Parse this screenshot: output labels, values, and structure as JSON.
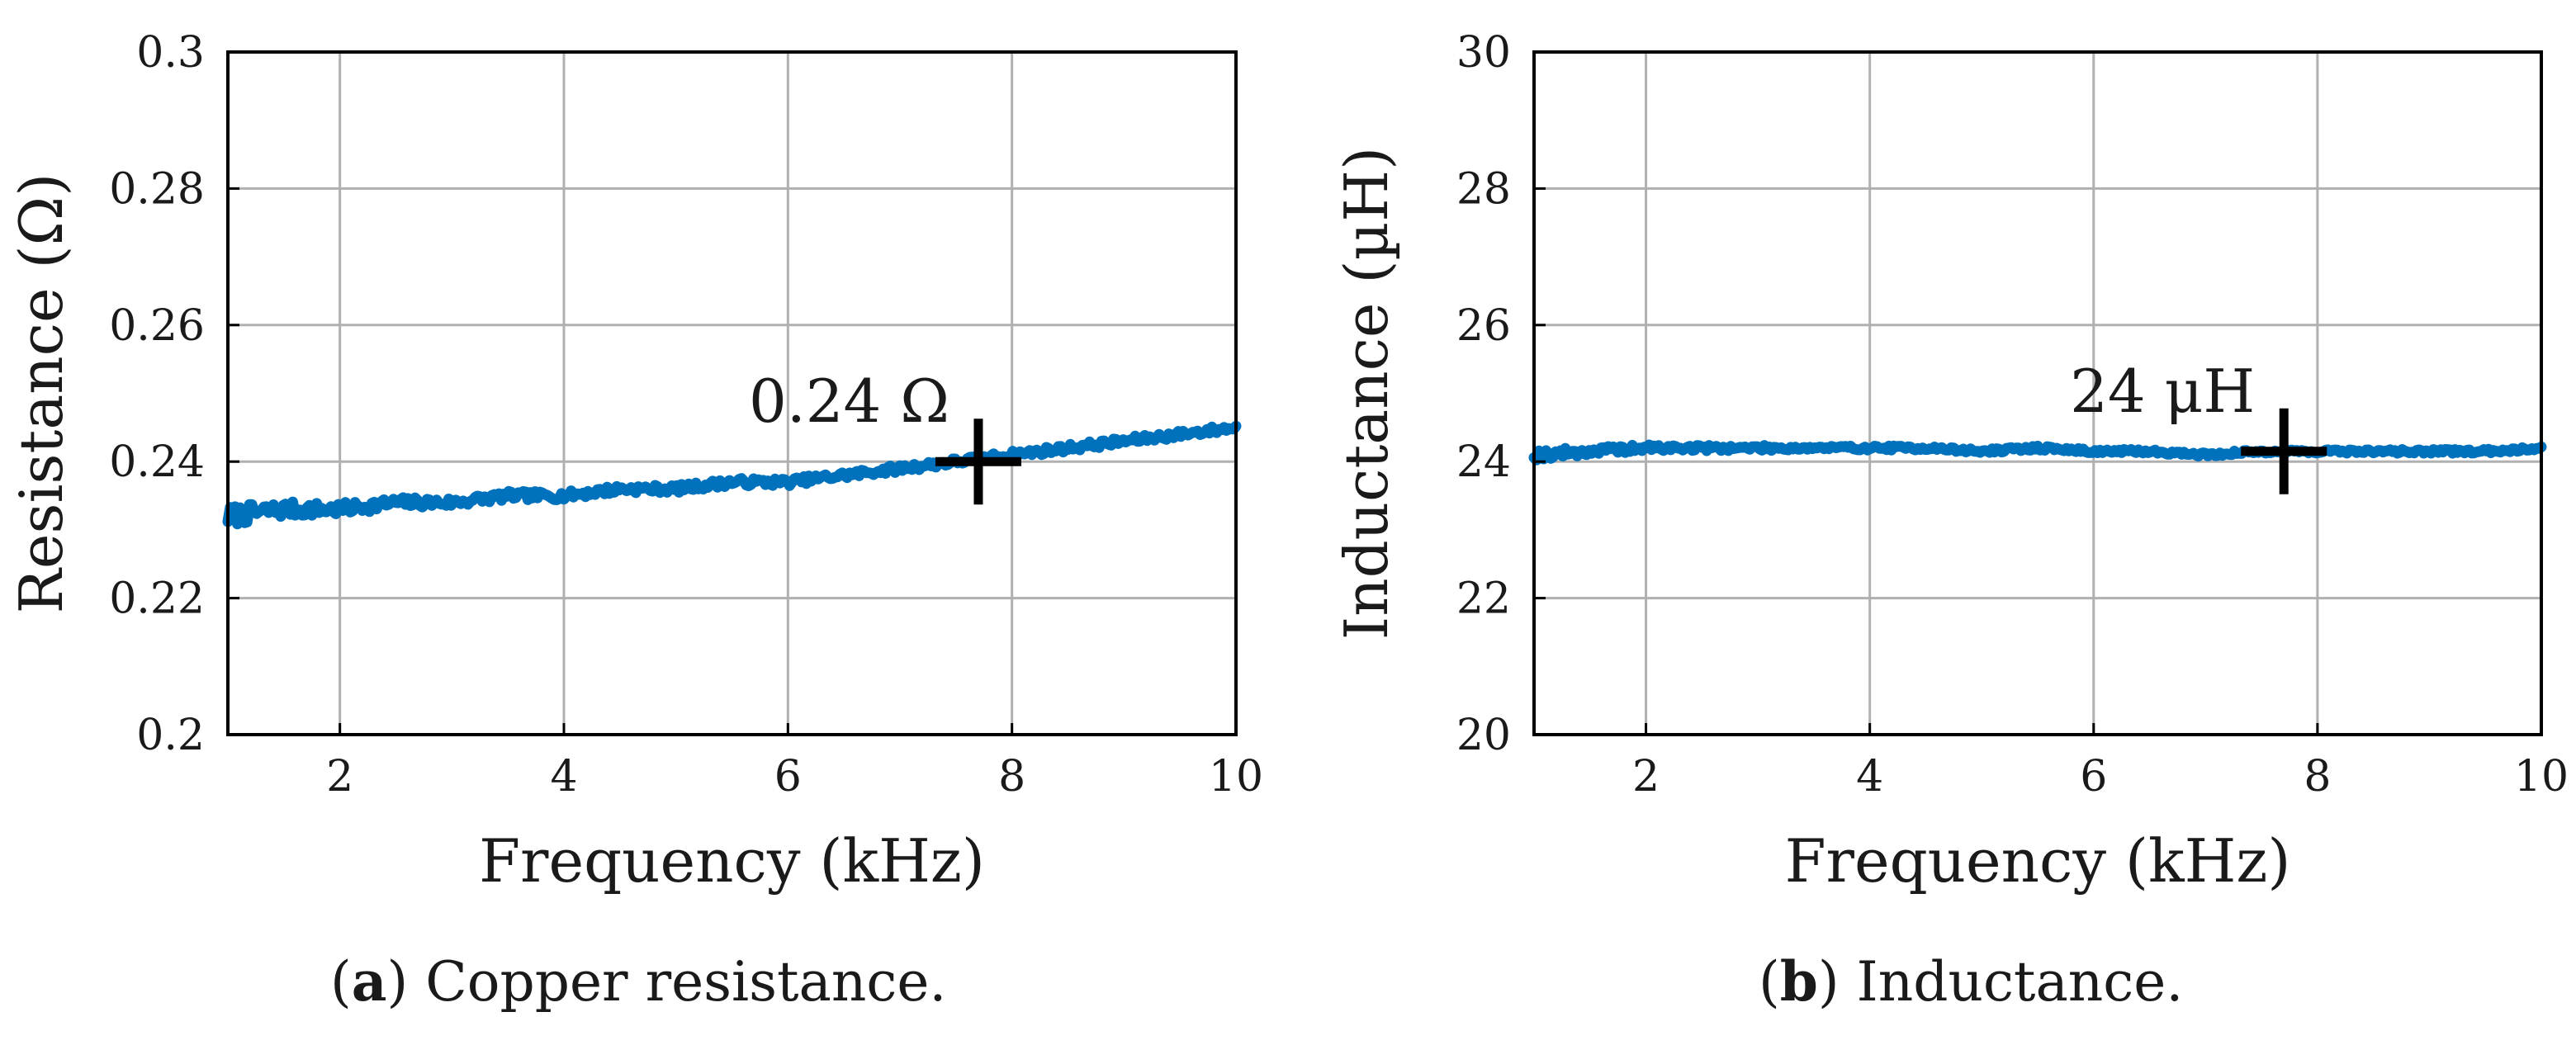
{
  "chart_data": [
    {
      "type": "line",
      "id": "a",
      "xlabel": "Frequency (kHz)",
      "ylabel": "Resistance (Ω)",
      "xlim": [
        1,
        10
      ],
      "ylim": [
        0.2,
        0.3
      ],
      "xticks": [
        2,
        4,
        6,
        8,
        10
      ],
      "xtick_labels": [
        "2",
        "4",
        "6",
        "8",
        "10"
      ],
      "yticks": [
        0.2,
        0.22,
        0.24,
        0.26,
        0.28,
        0.3
      ],
      "ytick_labels": [
        "0.2",
        "0.22",
        "0.24",
        "0.26",
        "0.28",
        "0.3"
      ],
      "grid": true,
      "line_color": "#0072BD",
      "series": [
        {
          "name": "Copper resistance",
          "x": [
            1.0,
            1.5,
            2.0,
            2.5,
            3.0,
            3.5,
            4.0,
            4.5,
            5.0,
            5.5,
            6.0,
            6.5,
            7.0,
            7.5,
            8.0,
            8.5,
            9.0,
            9.5,
            10.0
          ],
          "y": [
            0.232,
            0.233,
            0.233,
            0.234,
            0.234,
            0.235,
            0.235,
            0.236,
            0.236,
            0.237,
            0.237,
            0.238,
            0.239,
            0.24,
            0.241,
            0.242,
            0.243,
            0.244,
            0.245
          ]
        }
      ],
      "annotation": {
        "text": "0.24 Ω",
        "x": 7.7,
        "y": 0.24
      },
      "caption_label": "a",
      "caption_text": " Copper resistance."
    },
    {
      "type": "line",
      "id": "b",
      "xlabel": "Frequency (kHz)",
      "ylabel": "Inductance (µH)",
      "xlim": [
        1,
        10
      ],
      "ylim": [
        20,
        30
      ],
      "xticks": [
        2,
        4,
        6,
        8,
        10
      ],
      "xtick_labels": [
        "2",
        "4",
        "6",
        "8",
        "10"
      ],
      "yticks": [
        20,
        22,
        24,
        26,
        28,
        30
      ],
      "ytick_labels": [
        "20",
        "22",
        "24",
        "26",
        "28",
        "30"
      ],
      "grid": true,
      "line_color": "#0072BD",
      "series": [
        {
          "name": "Inductance",
          "x": [
            1.0,
            1.5,
            2.0,
            2.5,
            3.0,
            3.5,
            4.0,
            4.5,
            5.0,
            5.5,
            6.0,
            6.5,
            7.0,
            7.5,
            8.0,
            8.5,
            9.0,
            9.5,
            10.0
          ],
          "y": [
            24.1,
            24.15,
            24.2,
            24.2,
            24.2,
            24.2,
            24.2,
            24.2,
            24.15,
            24.2,
            24.15,
            24.15,
            24.1,
            24.15,
            24.15,
            24.15,
            24.15,
            24.15,
            24.2
          ]
        }
      ],
      "annotation": {
        "text": "24 μH",
        "x": 7.7,
        "y": 24.15
      },
      "caption_label": "b",
      "caption_text": " Inductance."
    }
  ]
}
